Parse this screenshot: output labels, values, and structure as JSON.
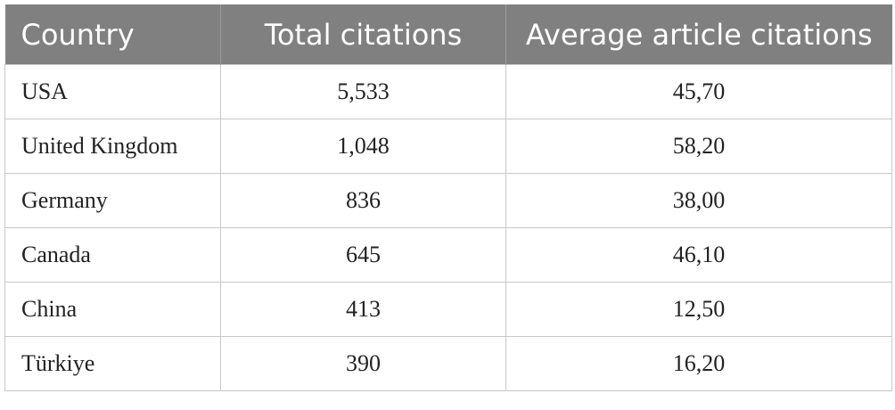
{
  "table": {
    "headers": [
      "Country",
      "Total citations",
      "Average article citations"
    ],
    "rows": [
      [
        "USA",
        "5,533",
        "45,70"
      ],
      [
        "United Kingdom",
        "1,048",
        "58,20"
      ],
      [
        "Germany",
        "836",
        "38,00"
      ],
      [
        "Canada",
        "645",
        "46,10"
      ],
      [
        "China",
        "413",
        "12,50"
      ],
      [
        "Türkiye",
        "390",
        "16,20"
      ]
    ]
  }
}
